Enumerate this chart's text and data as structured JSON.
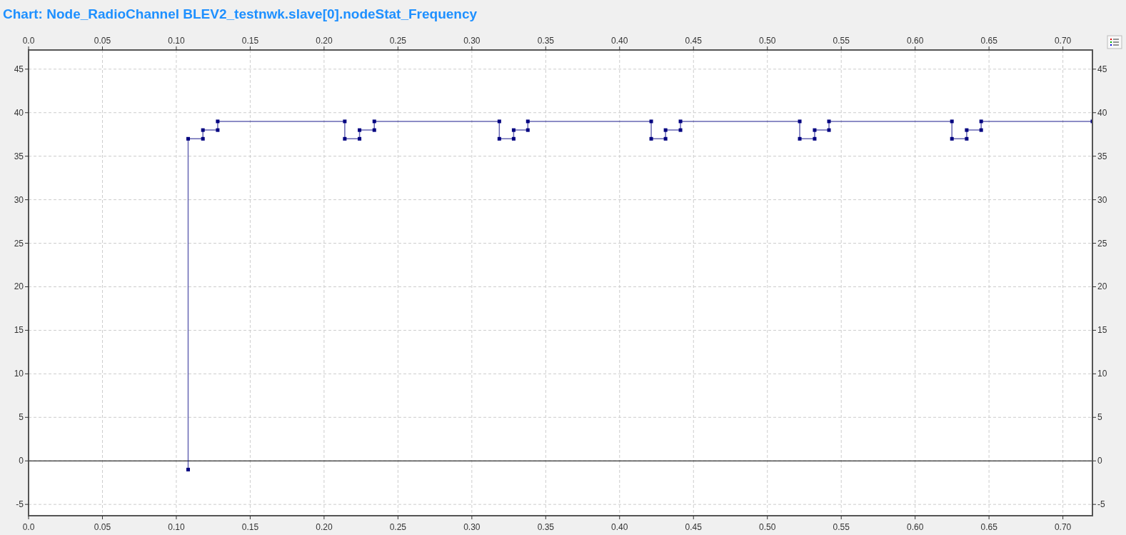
{
  "chart_data": {
    "type": "line",
    "title": "Chart: Node_RadioChannel BLEV2_testnwk.slave[0].nodeStat_Frequency",
    "x": [
      0.108,
      0.108,
      0.118,
      0.118,
      0.128,
      0.128,
      0.214,
      0.214,
      0.224,
      0.224,
      0.234,
      0.234,
      0.3186,
      0.3186,
      0.3283,
      0.3283,
      0.3379,
      0.3379,
      0.4214,
      0.4214,
      0.4311,
      0.4311,
      0.4412,
      0.4412,
      0.5219,
      0.5219,
      0.532,
      0.532,
      0.5417,
      0.5417,
      0.6249,
      0.6249,
      0.6349,
      0.6349,
      0.6447,
      0.6447,
      0.72
    ],
    "series": [
      {
        "color": "#000080",
        "values": [
          -1,
          37,
          37,
          38,
          38,
          39,
          39,
          37,
          37,
          38,
          38,
          39,
          39,
          37,
          37,
          38,
          38,
          39,
          39,
          37,
          37,
          38,
          38,
          39,
          39,
          37,
          37,
          38,
          38,
          39,
          39,
          37,
          37,
          38,
          38,
          39,
          39
        ]
      }
    ],
    "xlim": [
      0,
      0.72
    ],
    "xticks": [
      {
        "value": 0,
        "label": "0.0"
      },
      0.05,
      {
        "value": 0.1,
        "label": "0.10"
      },
      0.15,
      {
        "value": 0.2,
        "label": "0.20"
      },
      0.25,
      {
        "value": 0.3,
        "label": "0.30"
      },
      0.35,
      {
        "value": 0.4,
        "label": "0.40"
      },
      0.45,
      {
        "value": 0.5,
        "label": "0.50"
      },
      0.55,
      {
        "value": 0.6,
        "label": "0.60"
      },
      0.65,
      {
        "value": 0.7,
        "label": "0.70"
      }
    ],
    "x2lim": [
      0,
      0.72
    ],
    "x2ticks": [
      {
        "value": 0,
        "label": "0.0"
      },
      0.05,
      {
        "value": 0.1,
        "label": "0.10"
      },
      0.15,
      {
        "value": 0.2,
        "label": "0.20"
      },
      0.25,
      {
        "value": 0.3,
        "label": "0.30"
      },
      0.35,
      {
        "value": 0.4,
        "label": "0.40"
      },
      0.45,
      {
        "value": 0.5,
        "label": "0.50"
      },
      0.55,
      {
        "value": 0.6,
        "label": "0.60"
      },
      0.65,
      {
        "value": 0.7,
        "label": "0.70"
      }
    ],
    "ylim": [
      -6.3,
      47.2
    ],
    "yticks": [
      -5,
      0,
      5,
      10,
      15,
      20,
      25,
      30,
      35,
      40,
      45
    ],
    "y2lim": [
      -6.3,
      47.2
    ],
    "y2ticks": [
      -5,
      0,
      5,
      10,
      15,
      20,
      25,
      30,
      35,
      40,
      45
    ],
    "ref_lines": [
      {
        "axis": "y",
        "value": 0,
        "color": "#000000"
      }
    ],
    "grid": true,
    "marker": "square",
    "line_style": "solid"
  }
}
